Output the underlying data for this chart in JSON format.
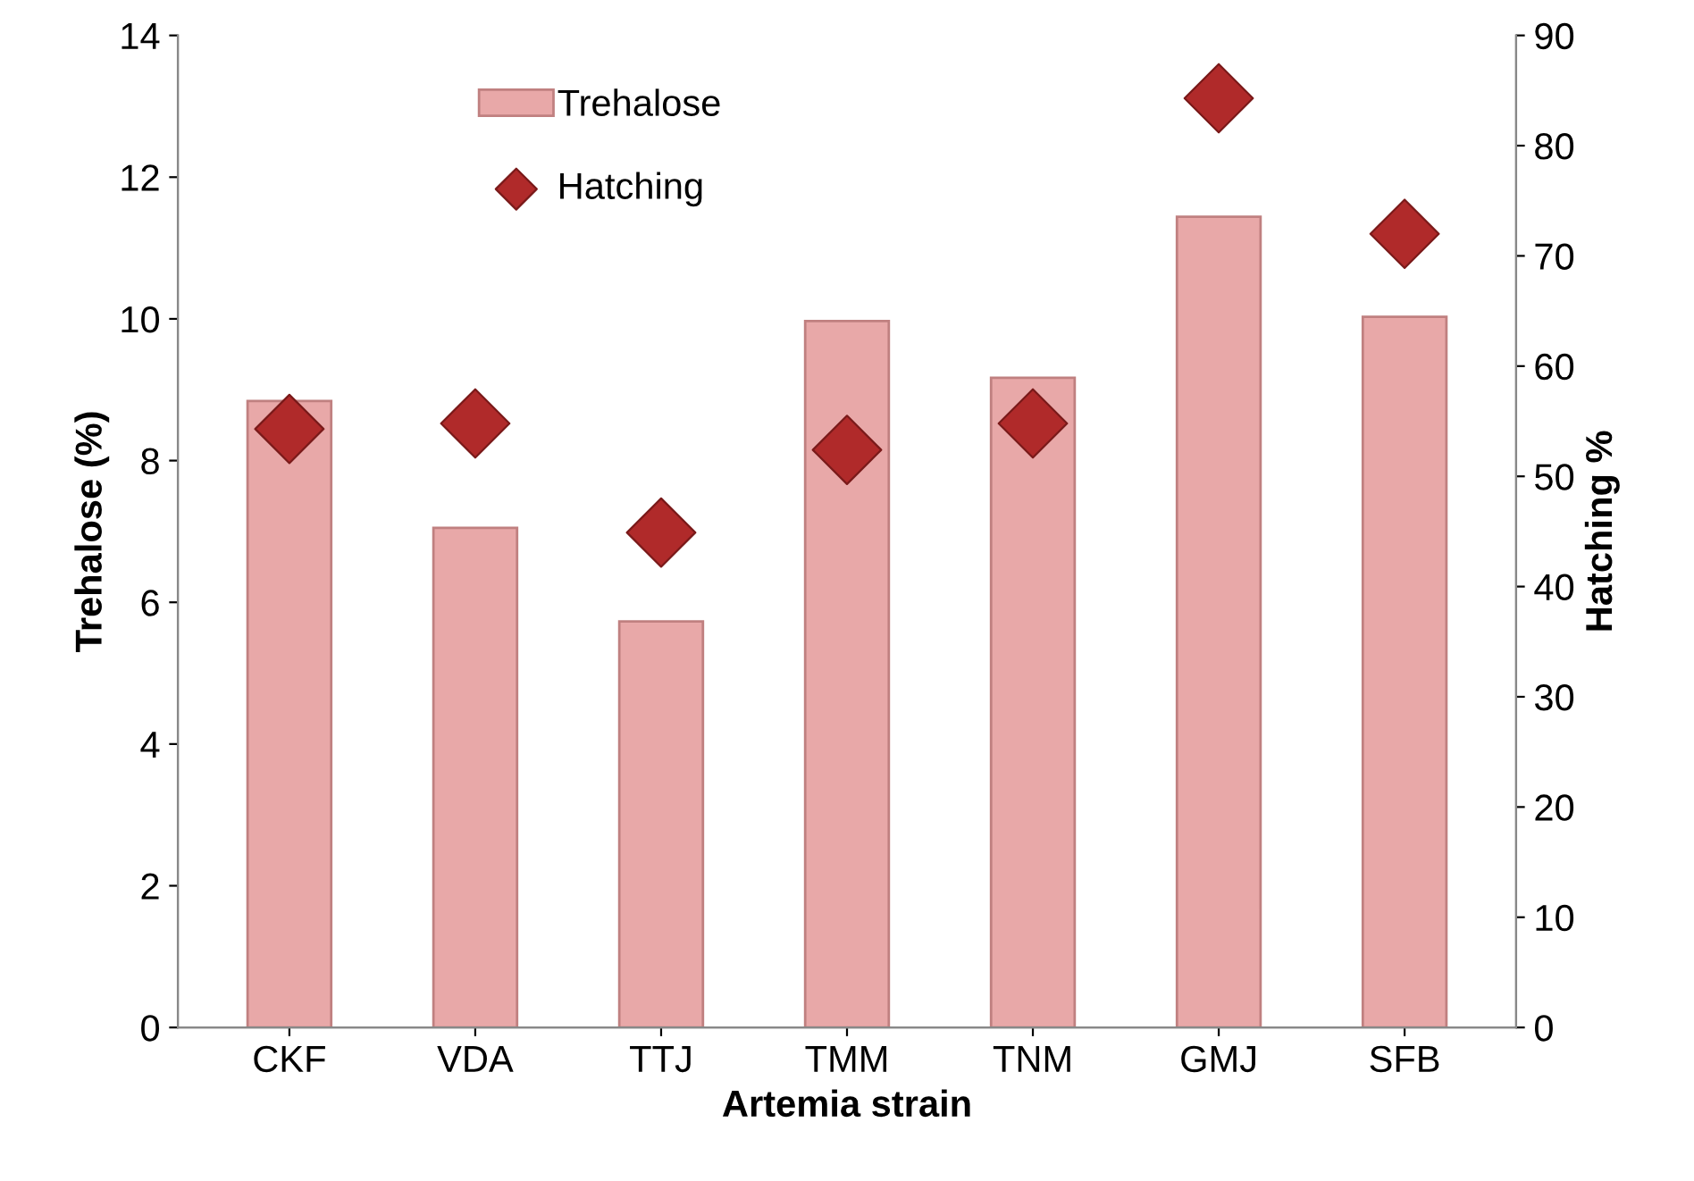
{
  "chart_data": {
    "type": "bar",
    "xlabel": "Artemia strain",
    "ylabel": "Trehalose (%)",
    "y2label": "Hatching %",
    "categories": [
      "CKF",
      "VDA",
      "TTJ",
      "TMM",
      "TNM",
      "GMJ",
      "SFB"
    ],
    "series": [
      {
        "name": "Trehalose",
        "color": "#e8a8a8",
        "values": [
          8.84,
          7.05,
          5.73,
          9.97,
          9.17,
          11.44,
          10.03
        ]
      },
      {
        "name": "Hatching",
        "type": "scatter",
        "axis": "y2",
        "color": "#b02a2a",
        "marker": "diamond",
        "values": [
          54.3,
          54.8,
          44.9,
          52.4,
          54.8,
          84.3,
          72.0
        ]
      }
    ],
    "ylim": [
      0,
      14
    ],
    "yticks": [
      0,
      2,
      4,
      6,
      8,
      10,
      12,
      14
    ],
    "y2lim": [
      0,
      90
    ],
    "y2ticks": [
      0,
      10,
      20,
      30,
      40,
      50,
      60,
      70,
      80,
      90
    ],
    "grid": false,
    "legend": "top left"
  }
}
